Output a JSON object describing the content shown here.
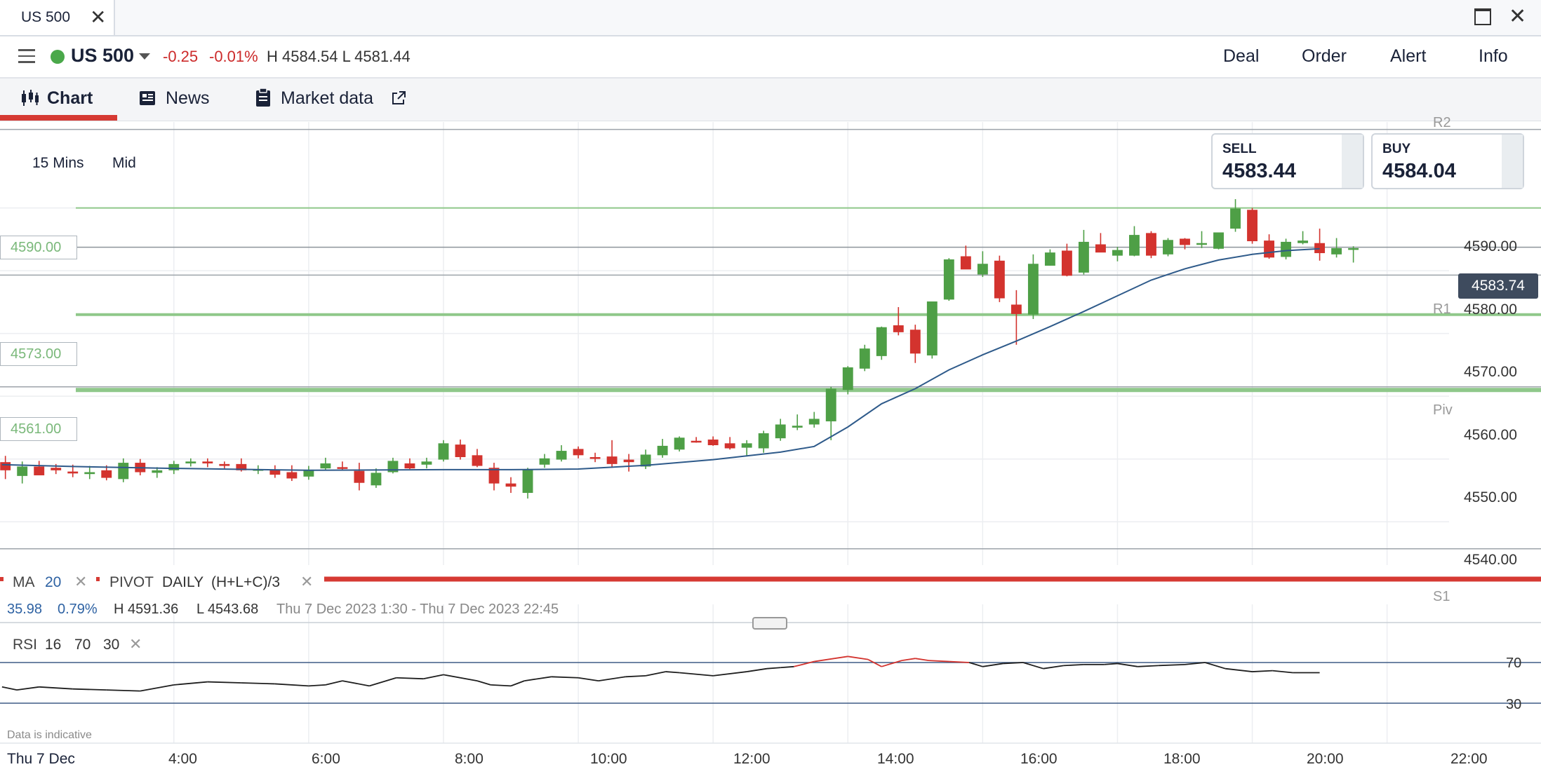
{
  "window": {
    "tab_title": "US 500",
    "close_glyph": "✕",
    "maximize_glyph": "",
    "window_close_glyph": "✕"
  },
  "header": {
    "instrument": "US 500",
    "change": "-0.25",
    "change_pct": "-0.01%",
    "high_low": "H 4584.54  L 4581.44",
    "actions": [
      "Deal",
      "Order",
      "Alert",
      "Info"
    ]
  },
  "tabs": [
    {
      "label": "Chart",
      "icon": "candlestick-icon"
    },
    {
      "label": "News",
      "icon": "news-icon"
    },
    {
      "label": "Market data",
      "icon": "clipboard-icon",
      "external_icon": "external-link-icon"
    }
  ],
  "trade": {
    "sell_label": "SELL",
    "sell_price": "4583.44",
    "buy_label": "BUY",
    "buy_price": "4584.04"
  },
  "toolbar": {
    "timeframe": "15 Mins",
    "price_type": "Mid"
  },
  "levels": {
    "l1": "4590.00",
    "l2": "4573.00",
    "l3": "4561.00"
  },
  "current_price": "4583.74",
  "pivots": {
    "r2": "R2",
    "r1": "R1",
    "piv": "Piv",
    "s1": "S1"
  },
  "indicators": {
    "ma_label": "MA",
    "ma_period": "20",
    "pivot_label": "PIVOT",
    "pivot_period": "DAILY",
    "pivot_formula": "(H+L+C)/3",
    "remove_glyph": "✕"
  },
  "stats": {
    "s1": "35.98",
    "s2": "0.79%",
    "high": "H 4591.36",
    "low": "L 4543.68",
    "range": "Thu 7 Dec 2023 1:30 - Thu 7 Dec 2023 22:45"
  },
  "rsi": {
    "label": "RSI",
    "period": "16",
    "upper": "70",
    "lower": "30",
    "remove_glyph": "✕"
  },
  "footer": {
    "indicative": "Data is indicative",
    "date": "Thu 7 Dec"
  },
  "colors": {
    "up": "#4e9f46",
    "down": "#d3332e",
    "ma": "#2e5a8a",
    "level": "#8fc88a",
    "accent": "#d63a33"
  },
  "chart_data": {
    "type": "candlestick",
    "ylabels": [
      "4590.00",
      "4580.00",
      "4570.00",
      "4560.00",
      "4550.00",
      "4540.00"
    ],
    "yticks": [
      4590,
      4580,
      4570,
      4560,
      4550,
      4540
    ],
    "xlabels": [
      "4:00",
      "6:00",
      "8:00",
      "10:00",
      "12:00",
      "14:00",
      "16:00",
      "18:00",
      "20:00",
      "22:00"
    ],
    "xticks_hours": [
      4,
      6,
      8,
      10,
      12,
      14,
      16,
      18,
      20,
      22
    ],
    "x_range_hours": [
      1.42,
      22.92
    ],
    "y_range": [
      4533.1,
      4602.8
    ],
    "candles_start_hour": 1.5,
    "candle_interval_hours": 0.25,
    "candles": [
      [
        4549.5,
        4550.5,
        4546.8,
        4548.2
      ],
      [
        4547.3,
        4549.6,
        4546.1,
        4548.8
      ],
      [
        4548.8,
        4549.7,
        4547.8,
        4547.4
      ],
      [
        4548.6,
        4549.2,
        4547.6,
        4548.2
      ],
      [
        4548.0,
        4549.1,
        4547.1,
        4547.7
      ],
      [
        4547.6,
        4548.9,
        4546.8,
        4547.9
      ],
      [
        4548.2,
        4549.0,
        4546.6,
        4547.0
      ],
      [
        4546.8,
        4550.1,
        4546.3,
        4549.4
      ],
      [
        4549.4,
        4550.0,
        4547.4,
        4547.9
      ],
      [
        4547.8,
        4548.7,
        4547.0,
        4548.2
      ],
      [
        4548.2,
        4549.7,
        4547.6,
        4549.2
      ],
      [
        4549.3,
        4550.1,
        4548.8,
        4549.6
      ],
      [
        4549.6,
        4550.1,
        4548.7,
        4549.3
      ],
      [
        4549.2,
        4549.6,
        4548.5,
        4548.9
      ],
      [
        4549.2,
        4550.1,
        4548.0,
        4548.2
      ],
      [
        4548.4,
        4549.0,
        4547.6,
        4548.4
      ],
      [
        4548.3,
        4549.0,
        4547.0,
        4547.5
      ],
      [
        4547.9,
        4549.0,
        4546.5,
        4546.9
      ],
      [
        4547.2,
        4548.9,
        4546.7,
        4548.3
      ],
      [
        4548.5,
        4550.2,
        4548.2,
        4549.3
      ],
      [
        4548.7,
        4549.6,
        4548.2,
        4548.6
      ],
      [
        4548.1,
        4549.4,
        4545.0,
        4546.2
      ],
      [
        4545.8,
        4548.5,
        4545.4,
        4547.8
      ],
      [
        4547.9,
        4550.2,
        4547.7,
        4549.7
      ],
      [
        4549.3,
        4550.1,
        4548.4,
        4548.5
      ],
      [
        4549.1,
        4550.2,
        4548.5,
        4549.6
      ],
      [
        4549.9,
        4553.0,
        4549.6,
        4552.5
      ],
      [
        4552.3,
        4553.1,
        4549.9,
        4550.3
      ],
      [
        4550.6,
        4551.6,
        4548.7,
        4548.9
      ],
      [
        4548.6,
        4549.4,
        4545.0,
        4546.1
      ],
      [
        4546.1,
        4547.1,
        4544.6,
        4545.6
      ],
      [
        4544.6,
        4548.6,
        4543.7,
        4548.4
      ],
      [
        4549.1,
        4550.8,
        4548.6,
        4550.1
      ],
      [
        4549.9,
        4552.2,
        4549.6,
        4551.3
      ],
      [
        4551.6,
        4552.0,
        4550.1,
        4550.6
      ],
      [
        4550.3,
        4551.0,
        4549.5,
        4550.2
      ],
      [
        4550.4,
        4553.0,
        4548.6,
        4549.2
      ],
      [
        4549.9,
        4550.8,
        4548.0,
        4549.5
      ],
      [
        4548.8,
        4551.5,
        4548.4,
        4550.7
      ],
      [
        4550.6,
        4553.2,
        4550.2,
        4552.1
      ],
      [
        4551.5,
        4553.6,
        4551.2,
        4553.4
      ],
      [
        4552.9,
        4553.5,
        4552.6,
        4552.8
      ],
      [
        4553.1,
        4553.6,
        4552.1,
        4552.2
      ],
      [
        4552.5,
        4553.5,
        4551.5,
        4551.7
      ],
      [
        4551.8,
        4553.0,
        4550.4,
        4552.5
      ],
      [
        4551.7,
        4554.5,
        4551.0,
        4554.1
      ],
      [
        4553.3,
        4556.4,
        4552.9,
        4555.5
      ],
      [
        4555.0,
        4557.1,
        4554.6,
        4555.3
      ],
      [
        4555.5,
        4557.5,
        4555.0,
        4556.4
      ],
      [
        4556.0,
        4561.5,
        4553.0,
        4561.2
      ],
      [
        4561.0,
        4564.8,
        4560.3,
        4564.6
      ],
      [
        4564.4,
        4568.2,
        4564.0,
        4567.6
      ],
      [
        4566.4,
        4571.1,
        4565.8,
        4571.0
      ],
      [
        4571.3,
        4574.2,
        4569.7,
        4570.2
      ],
      [
        4570.6,
        4571.4,
        4565.3,
        4566.8
      ],
      [
        4566.5,
        4574.9,
        4566.0,
        4575.1
      ],
      [
        4575.4,
        4582.0,
        4575.2,
        4581.8
      ],
      [
        4582.3,
        4584.0,
        4580.6,
        4580.2
      ],
      [
        4579.4,
        4583.1,
        4579.0,
        4581.1
      ],
      [
        4581.6,
        4582.4,
        4575.0,
        4575.6
      ],
      [
        4574.6,
        4576.9,
        4568.2,
        4573.1
      ],
      [
        4573.0,
        4582.6,
        4572.3,
        4581.1
      ],
      [
        4580.8,
        4583.4,
        4580.8,
        4582.9
      ],
      [
        4583.2,
        4584.3,
        4579.1,
        4579.2
      ],
      [
        4579.7,
        4586.5,
        4579.4,
        4584.6
      ],
      [
        4584.2,
        4586.0,
        4583.0,
        4582.9
      ],
      [
        4582.4,
        4583.8,
        4581.5,
        4583.3
      ],
      [
        4582.4,
        4587.1,
        4582.3,
        4585.7
      ],
      [
        4586.0,
        4586.3,
        4582.0,
        4582.4
      ],
      [
        4582.6,
        4585.2,
        4582.3,
        4584.9
      ],
      [
        4585.1,
        4585.2,
        4583.4,
        4584.1
      ],
      [
        4584.3,
        4586.3,
        4583.6,
        4584.4
      ],
      [
        4583.5,
        4585.8,
        4583.4,
        4586.1
      ],
      [
        4586.7,
        4591.4,
        4586.2,
        4589.9
      ],
      [
        4589.7,
        4590.0,
        4584.3,
        4584.7
      ],
      [
        4584.8,
        4585.8,
        4581.9,
        4582.1
      ],
      [
        4582.2,
        4585.1,
        4581.8,
        4584.6
      ],
      [
        4584.4,
        4586.3,
        4584.2,
        4584.8
      ],
      [
        4584.4,
        4586.7,
        4581.6,
        4582.8
      ],
      [
        4582.6,
        4585.2,
        4582.1,
        4583.6
      ],
      [
        4583.6,
        4583.9,
        4581.3,
        4583.6
      ]
    ],
    "ma_period": 20,
    "ma": [
      [
        1.45,
        4549.1
      ],
      [
        2.5,
        4548.8
      ],
      [
        4.0,
        4548.5
      ],
      [
        6.0,
        4548.2
      ],
      [
        8.0,
        4548.3
      ],
      [
        9.0,
        4548.3
      ],
      [
        10.0,
        4548.4
      ],
      [
        11.0,
        4549.0
      ],
      [
        12.0,
        4549.9
      ],
      [
        13.0,
        4551.1
      ],
      [
        13.5,
        4552.0
      ],
      [
        14.0,
        4555.1
      ],
      [
        14.5,
        4558.8
      ],
      [
        15.0,
        4561.2
      ],
      [
        15.5,
        4564.2
      ],
      [
        16.0,
        4566.6
      ],
      [
        16.5,
        4568.8
      ],
      [
        17.0,
        4571.1
      ],
      [
        17.5,
        4573.5
      ],
      [
        18.0,
        4576.0
      ],
      [
        18.5,
        4578.5
      ],
      [
        19.0,
        4580.3
      ],
      [
        19.5,
        4581.7
      ],
      [
        20.0,
        4582.6
      ],
      [
        20.5,
        4583.2
      ],
      [
        21.0,
        4583.5
      ]
    ],
    "pivot_levels": {
      "r2": 4602.5,
      "r1": 4579.3,
      "piv": 4561.5,
      "s1": 4535.7
    },
    "rsi_range": [
      0,
      100
    ],
    "rsi_levels": [
      70,
      30
    ],
    "rsi": [
      [
        1.45,
        46
      ],
      [
        1.67,
        43
      ],
      [
        2.0,
        46
      ],
      [
        2.5,
        44
      ],
      [
        3.0,
        43
      ],
      [
        3.5,
        42
      ],
      [
        4.0,
        48
      ],
      [
        4.5,
        51
      ],
      [
        5.0,
        50
      ],
      [
        5.5,
        49
      ],
      [
        6.0,
        47
      ],
      [
        6.25,
        48
      ],
      [
        6.5,
        52
      ],
      [
        6.9,
        47
      ],
      [
        7.3,
        55
      ],
      [
        7.7,
        54
      ],
      [
        8.0,
        58
      ],
      [
        8.5,
        52
      ],
      [
        8.7,
        48
      ],
      [
        9.0,
        47
      ],
      [
        9.2,
        52
      ],
      [
        9.6,
        56
      ],
      [
        10.0,
        55
      ],
      [
        10.3,
        52
      ],
      [
        10.7,
        56
      ],
      [
        11.0,
        57
      ],
      [
        11.3,
        61
      ],
      [
        11.5,
        60
      ],
      [
        12.0,
        57
      ],
      [
        12.5,
        61
      ],
      [
        12.8,
        64
      ],
      [
        13.0,
        65
      ],
      [
        13.2,
        66
      ],
      [
        13.5,
        71
      ],
      [
        13.8,
        74
      ],
      [
        14.0,
        76
      ],
      [
        14.3,
        73
      ],
      [
        14.5,
        66
      ],
      [
        14.8,
        72
      ],
      [
        15.0,
        74
      ],
      [
        15.2,
        72
      ],
      [
        15.5,
        71
      ],
      [
        15.8,
        70
      ],
      [
        16.0,
        66
      ],
      [
        16.3,
        69
      ],
      [
        16.6,
        70
      ],
      [
        16.9,
        64
      ],
      [
        17.2,
        67
      ],
      [
        17.5,
        68
      ],
      [
        17.8,
        68
      ],
      [
        18.0,
        69
      ],
      [
        18.3,
        66
      ],
      [
        18.6,
        67
      ],
      [
        19.0,
        68
      ],
      [
        19.3,
        70
      ],
      [
        19.6,
        64
      ],
      [
        20.0,
        61
      ],
      [
        20.3,
        62
      ],
      [
        20.6,
        60
      ],
      [
        21.0,
        60
      ]
    ]
  }
}
